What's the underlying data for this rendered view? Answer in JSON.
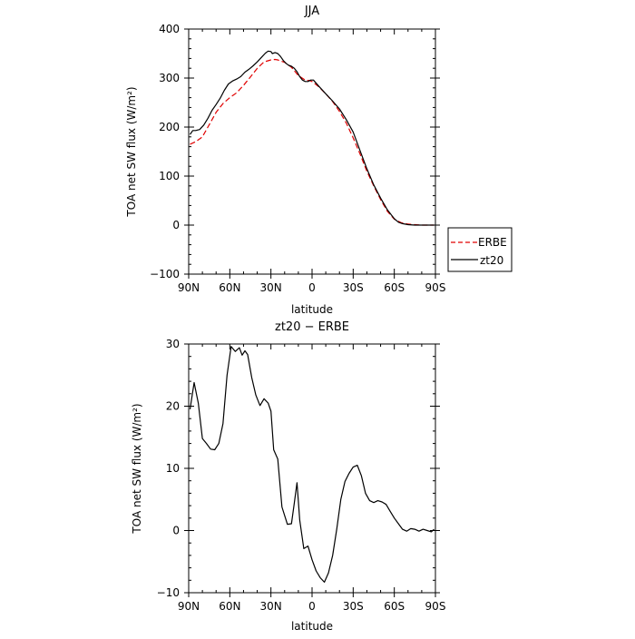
{
  "chart_data": [
    {
      "type": "line",
      "title": "JJA",
      "xlabel": "latitude",
      "ylabel": "TOA net SW flux (W/m²)",
      "xlim": [
        -90,
        90
      ],
      "ylim": [
        -100,
        400
      ],
      "x_ticks": [
        -90,
        -60,
        -30,
        0,
        30,
        60,
        90
      ],
      "x_tick_labels": [
        "90N",
        "60N",
        "30N",
        "0",
        "30S",
        "60S",
        "90S"
      ],
      "y_ticks": [
        -100,
        0,
        100,
        200,
        300,
        400
      ],
      "y_tick_labels": [
        "−100",
        "0",
        "100",
        "200",
        "300",
        "400"
      ],
      "grid": false,
      "legend_position": "right",
      "series": [
        {
          "name": "ERBE",
          "color": "#e00000",
          "dash": "dashed",
          "x": [
            -89,
            -85,
            -80,
            -75,
            -70,
            -65,
            -60,
            -55,
            -50,
            -45,
            -40,
            -35,
            -30,
            -27,
            -25,
            -20,
            -15,
            -10,
            -5,
            -2,
            0,
            5,
            10,
            15,
            20,
            25,
            30,
            35,
            40,
            45,
            50,
            55,
            60,
            65,
            70,
            75,
            80,
            85,
            89
          ],
          "y": [
            165,
            170,
            180,
            205,
            230,
            248,
            260,
            270,
            285,
            302,
            320,
            333,
            337,
            338,
            337,
            332,
            322,
            305,
            296,
            295,
            293,
            282,
            268,
            252,
            232,
            208,
            178,
            145,
            110,
            80,
            52,
            28,
            12,
            5,
            2,
            1,
            0,
            0,
            0
          ]
        },
        {
          "name": "zt20",
          "color": "#000000",
          "dash": "solid",
          "x": [
            -89,
            -87,
            -85,
            -82,
            -79,
            -76,
            -73,
            -70,
            -67,
            -64,
            -61,
            -58,
            -55,
            -52,
            -49,
            -46,
            -43,
            -40,
            -37,
            -34,
            -32,
            -30,
            -29,
            -27,
            -25,
            -23,
            -21,
            -19,
            -17,
            -15,
            -13,
            -11,
            -9,
            -7,
            -5,
            -3,
            -1,
            1,
            5,
            10,
            15,
            20,
            25,
            30,
            35,
            40,
            45,
            50,
            55,
            60,
            63,
            66,
            70,
            75,
            80,
            85,
            89
          ],
          "y": [
            185,
            193,
            193,
            195,
            204,
            218,
            234,
            246,
            259,
            275,
            288,
            294,
            298,
            303,
            312,
            318,
            325,
            333,
            342,
            351,
            355,
            354,
            350,
            352,
            350,
            344,
            336,
            330,
            326,
            324,
            320,
            313,
            303,
            296,
            293,
            293,
            296,
            296,
            283,
            268,
            253,
            237,
            215,
            190,
            152,
            115,
            82,
            55,
            31,
            13,
            6,
            3,
            1,
            0,
            0,
            0,
            0
          ]
        }
      ]
    },
    {
      "type": "line",
      "title": "zt20 − ERBE",
      "xlabel": "latitude",
      "ylabel": "TOA net SW flux (W/m²)",
      "xlim": [
        -90,
        90
      ],
      "ylim": [
        -10,
        30
      ],
      "x_ticks": [
        -90,
        -60,
        -30,
        0,
        30,
        60,
        90
      ],
      "x_tick_labels": [
        "90N",
        "60N",
        "30N",
        "0",
        "30S",
        "60S",
        "90S"
      ],
      "y_ticks": [
        -10,
        0,
        10,
        20,
        30
      ],
      "y_tick_labels": [
        "−10",
        "0",
        "10",
        "20",
        "30"
      ],
      "grid": false,
      "series": [
        {
          "name": "",
          "color": "#000000",
          "dash": "solid",
          "x": [
            -89,
            -86,
            -83,
            -80,
            -77,
            -74,
            -71,
            -68,
            -65,
            -62,
            -59,
            -56,
            -53,
            -51,
            -49,
            -47,
            -44,
            -41,
            -38,
            -35,
            -32,
            -30,
            -28,
            -25,
            -22,
            -20,
            -18,
            -15,
            -13,
            -11,
            -9,
            -6,
            -3,
            0,
            3,
            6,
            9,
            12,
            15,
            18,
            21,
            24,
            27,
            30,
            33,
            36,
            39,
            42,
            45,
            48,
            51,
            54,
            57,
            60,
            63,
            66,
            69,
            72,
            75,
            78,
            81,
            84,
            87,
            89
          ],
          "y": [
            19.5,
            23.8,
            20.5,
            14.8,
            14.0,
            13.1,
            13.0,
            14.0,
            17.2,
            25.0,
            29.6,
            28.8,
            29.4,
            28.2,
            28.9,
            28.3,
            24.6,
            21.8,
            20.1,
            21.2,
            20.5,
            19.2,
            13.0,
            11.5,
            3.8,
            2.4,
            1.0,
            1.1,
            4.4,
            7.7,
            1.7,
            -2.9,
            -2.5,
            -4.7,
            -6.5,
            -7.6,
            -8.3,
            -6.8,
            -4.0,
            0.2,
            5.0,
            7.9,
            9.2,
            10.2,
            10.5,
            8.8,
            6.0,
            4.8,
            4.5,
            4.8,
            4.6,
            4.2,
            3.1,
            2.0,
            1.1,
            0.2,
            -0.1,
            0.3,
            0.2,
            -0.1,
            0.2,
            0.0,
            -0.2,
            0.2
          ]
        }
      ]
    }
  ]
}
